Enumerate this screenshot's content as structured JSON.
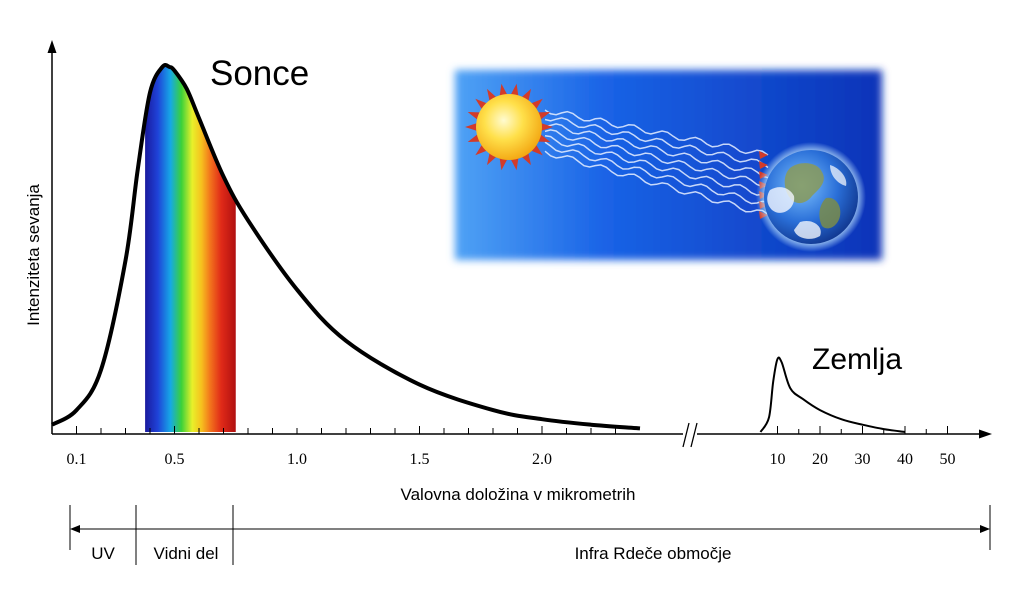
{
  "chart_data": {
    "type": "line",
    "ylabel": "Intenziteta sevanja",
    "xlabel": "Valovna doložina v mikrometrih",
    "x_axis_break": true,
    "series": [
      {
        "name": "Sonce",
        "x": [
          0.0,
          0.1,
          0.2,
          0.3,
          0.35,
          0.4,
          0.45,
          0.48,
          0.5,
          0.55,
          0.6,
          0.7,
          0.8,
          1.0,
          1.2,
          1.5,
          1.8,
          2.0,
          2.2,
          2.4
        ],
        "y": [
          0.02,
          0.06,
          0.17,
          0.47,
          0.72,
          0.93,
          1.0,
          1.0,
          0.99,
          0.94,
          0.86,
          0.7,
          0.58,
          0.39,
          0.25,
          0.13,
          0.06,
          0.035,
          0.02,
          0.01
        ]
      },
      {
        "name": "Zemlja",
        "x": [
          6,
          8,
          9,
          10,
          11,
          13,
          16,
          20,
          25,
          30,
          35,
          40
        ],
        "y": [
          0.0,
          0.04,
          0.14,
          0.2,
          0.19,
          0.12,
          0.09,
          0.06,
          0.035,
          0.02,
          0.008,
          0.0
        ]
      }
    ],
    "x_ticks_left": [
      "0.1",
      "0.5",
      "1.0",
      "1.5",
      "2.0"
    ],
    "x_ticks_right": [
      "10",
      "20",
      "30",
      "40",
      "50"
    ],
    "visible_band": {
      "from": 0.38,
      "to": 0.75
    },
    "regions": [
      {
        "label": "UV"
      },
      {
        "label": "Vidni del"
      },
      {
        "label": "Infra Rdeče območje"
      }
    ],
    "colors": {
      "sun_curve": "#000000",
      "earth_curve": "#000000",
      "inset_bg": "#1e5fe8",
      "sun": "#ffd21f",
      "rays": "#d23b2a"
    },
    "inset_icons": [
      "sun-icon",
      "earth-icon",
      "radiation-waves-icon"
    ]
  }
}
